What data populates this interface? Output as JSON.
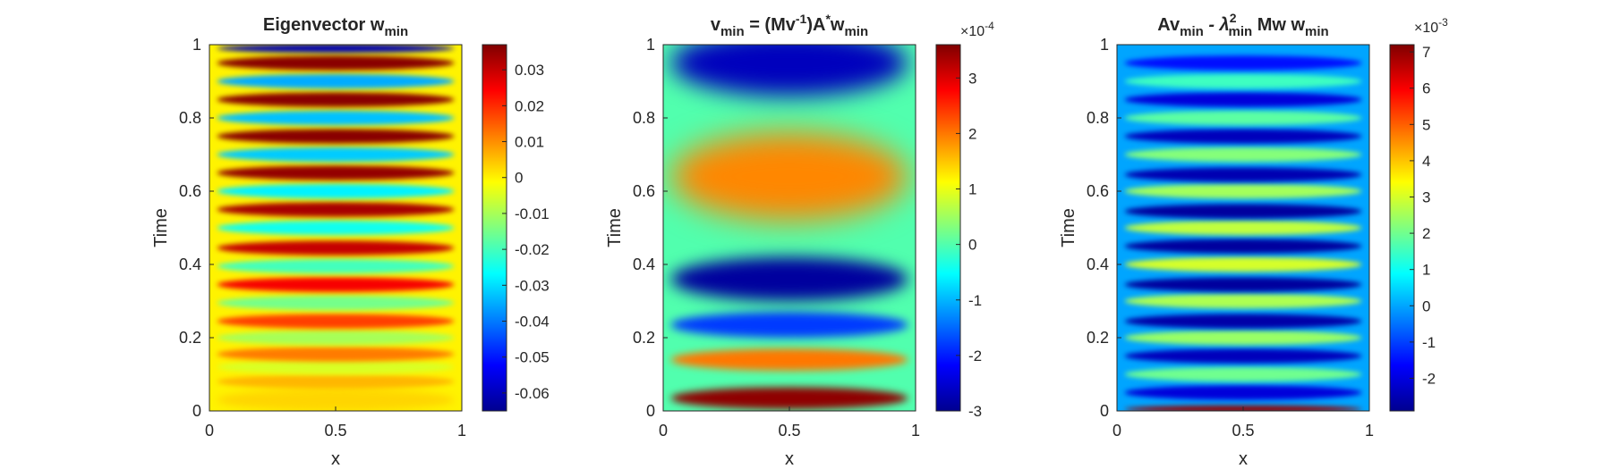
{
  "chart_data": [
    {
      "type": "heatmap",
      "title": "Eigenvector w",
      "title_sub": "min",
      "xlabel": "x",
      "ylabel": "Time",
      "xlim": [
        0,
        1
      ],
      "ylim": [
        0,
        1
      ],
      "xticks": [
        "0",
        "0.5",
        "1"
      ],
      "yticks": [
        "0",
        "0.2",
        "0.4",
        "0.6",
        "0.8",
        "1"
      ],
      "colorbar": {
        "colormap": "jet",
        "clim": [
          -0.065,
          0.037
        ],
        "ticks": [
          0.03,
          0.02,
          0.01,
          0,
          -0.01,
          -0.02,
          -0.03,
          -0.04,
          -0.05,
          -0.06
        ],
        "tick_labels": [
          "0.03",
          "0.02",
          "0.01",
          "0",
          "-0.01",
          "-0.02",
          "-0.03",
          "-0.04",
          "-0.05",
          "-0.06"
        ],
        "exponent": ""
      },
      "field": {
        "x_profile": "sin(pi*x)",
        "time_bands": [
          {
            "t": 0.03,
            "value": 0.003,
            "width": 0.03
          },
          {
            "t": 0.08,
            "value": 0.006,
            "width": 0.02
          },
          {
            "t": 0.12,
            "value": -0.005,
            "width": 0.02
          },
          {
            "t": 0.155,
            "value": 0.012,
            "width": 0.02
          },
          {
            "t": 0.2,
            "value": -0.01,
            "width": 0.02
          },
          {
            "t": 0.245,
            "value": 0.018,
            "width": 0.02
          },
          {
            "t": 0.295,
            "value": -0.015,
            "width": 0.02
          },
          {
            "t": 0.345,
            "value": 0.025,
            "width": 0.02
          },
          {
            "t": 0.395,
            "value": -0.02,
            "width": 0.02
          },
          {
            "t": 0.445,
            "value": 0.03,
            "width": 0.02
          },
          {
            "t": 0.5,
            "value": -0.025,
            "width": 0.02
          },
          {
            "t": 0.55,
            "value": 0.033,
            "width": 0.02
          },
          {
            "t": 0.6,
            "value": -0.028,
            "width": 0.02
          },
          {
            "t": 0.65,
            "value": 0.035,
            "width": 0.02
          },
          {
            "t": 0.7,
            "value": -0.032,
            "width": 0.02
          },
          {
            "t": 0.75,
            "value": 0.036,
            "width": 0.02
          },
          {
            "t": 0.8,
            "value": -0.033,
            "width": 0.02
          },
          {
            "t": 0.85,
            "value": 0.036,
            "width": 0.02
          },
          {
            "t": 0.9,
            "value": -0.035,
            "width": 0.02
          },
          {
            "t": 0.95,
            "value": 0.036,
            "width": 0.02
          },
          {
            "t": 0.99,
            "value": -0.06,
            "width": 0.012
          }
        ]
      }
    },
    {
      "type": "heatmap",
      "title": "v",
      "title_sub": "min",
      "title_mid": " = (Mv",
      "title_sup": "-1",
      "title_mid2": ")A",
      "title_sup2": "*",
      "title_end": "w",
      "title_sub2": "min",
      "xlabel": "x",
      "ylabel": "Time",
      "xlim": [
        0,
        1
      ],
      "ylim": [
        0,
        1
      ],
      "xticks": [
        "0",
        "0.5",
        "1"
      ],
      "yticks": [
        "0",
        "0.2",
        "0.4",
        "0.6",
        "0.8",
        "1"
      ],
      "colorbar": {
        "colormap": "jet",
        "clim": [
          -3,
          3.6
        ],
        "ticks": [
          3,
          2,
          1,
          0,
          -1,
          -2,
          -3
        ],
        "tick_labels": [
          "3",
          "2",
          "1",
          "0",
          "-1",
          "-2",
          "-3"
        ],
        "exponent": "×10",
        "exponent_power": "-4"
      },
      "field": {
        "x_profile": "sin(pi*x)",
        "time_bands": [
          {
            "t": 0.035,
            "value": 3.5,
            "width": 0.03
          },
          {
            "t": 0.14,
            "value": 2.0,
            "width": 0.03
          },
          {
            "t": 0.235,
            "value": -1.8,
            "width": 0.035
          },
          {
            "t": 0.36,
            "value": -2.8,
            "width": 0.06
          },
          {
            "t": 0.64,
            "value": 1.9,
            "width": 0.12
          },
          {
            "t": 0.95,
            "value": -2.6,
            "width": 0.09
          }
        ]
      }
    },
    {
      "type": "heatmap",
      "title": "Av",
      "title_sub": "min",
      "title_mid": " - λ",
      "title_sup": "2",
      "title_sub_b": "min",
      "title_end": " Mw w",
      "title_sub2": "min",
      "xlabel": "x",
      "ylabel": "Time",
      "xlim": [
        0,
        1
      ],
      "ylim": [
        0,
        1
      ],
      "xticks": [
        "0",
        "0.5",
        "1"
      ],
      "yticks": [
        "0",
        "0.2",
        "0.4",
        "0.6",
        "0.8",
        "1"
      ],
      "colorbar": {
        "colormap": "jet",
        "clim": [
          -2.9,
          7.2
        ],
        "ticks": [
          7,
          6,
          5,
          4,
          3,
          2,
          1,
          0,
          -1,
          -2
        ],
        "tick_labels": [
          "7",
          "6",
          "5",
          "4",
          "3",
          "2",
          "1",
          "0",
          "-1",
          "-2"
        ],
        "exponent": "×10",
        "exponent_power": "-3"
      },
      "field": {
        "x_profile": "sin(pi*x)",
        "time_bands": [
          {
            "t": 0.005,
            "value": 7.0,
            "width": 0.01
          },
          {
            "t": 0.05,
            "value": -2.0,
            "width": 0.02
          },
          {
            "t": 0.1,
            "value": 2.0,
            "width": 0.02
          },
          {
            "t": 0.15,
            "value": -2.3,
            "width": 0.02
          },
          {
            "t": 0.2,
            "value": 2.4,
            "width": 0.02
          },
          {
            "t": 0.245,
            "value": -2.5,
            "width": 0.02
          },
          {
            "t": 0.3,
            "value": 2.6,
            "width": 0.02
          },
          {
            "t": 0.345,
            "value": -2.6,
            "width": 0.02
          },
          {
            "t": 0.4,
            "value": 3.0,
            "width": 0.02
          },
          {
            "t": 0.45,
            "value": -2.6,
            "width": 0.02
          },
          {
            "t": 0.5,
            "value": 2.8,
            "width": 0.02
          },
          {
            "t": 0.545,
            "value": -2.6,
            "width": 0.02
          },
          {
            "t": 0.6,
            "value": 2.5,
            "width": 0.02
          },
          {
            "t": 0.645,
            "value": -2.4,
            "width": 0.02
          },
          {
            "t": 0.7,
            "value": 2.2,
            "width": 0.02
          },
          {
            "t": 0.75,
            "value": -2.3,
            "width": 0.02
          },
          {
            "t": 0.8,
            "value": 1.8,
            "width": 0.02
          },
          {
            "t": 0.85,
            "value": -2.0,
            "width": 0.02
          },
          {
            "t": 0.9,
            "value": 1.5,
            "width": 0.02
          },
          {
            "t": 0.95,
            "value": -1.5,
            "width": 0.02
          }
        ]
      }
    }
  ]
}
